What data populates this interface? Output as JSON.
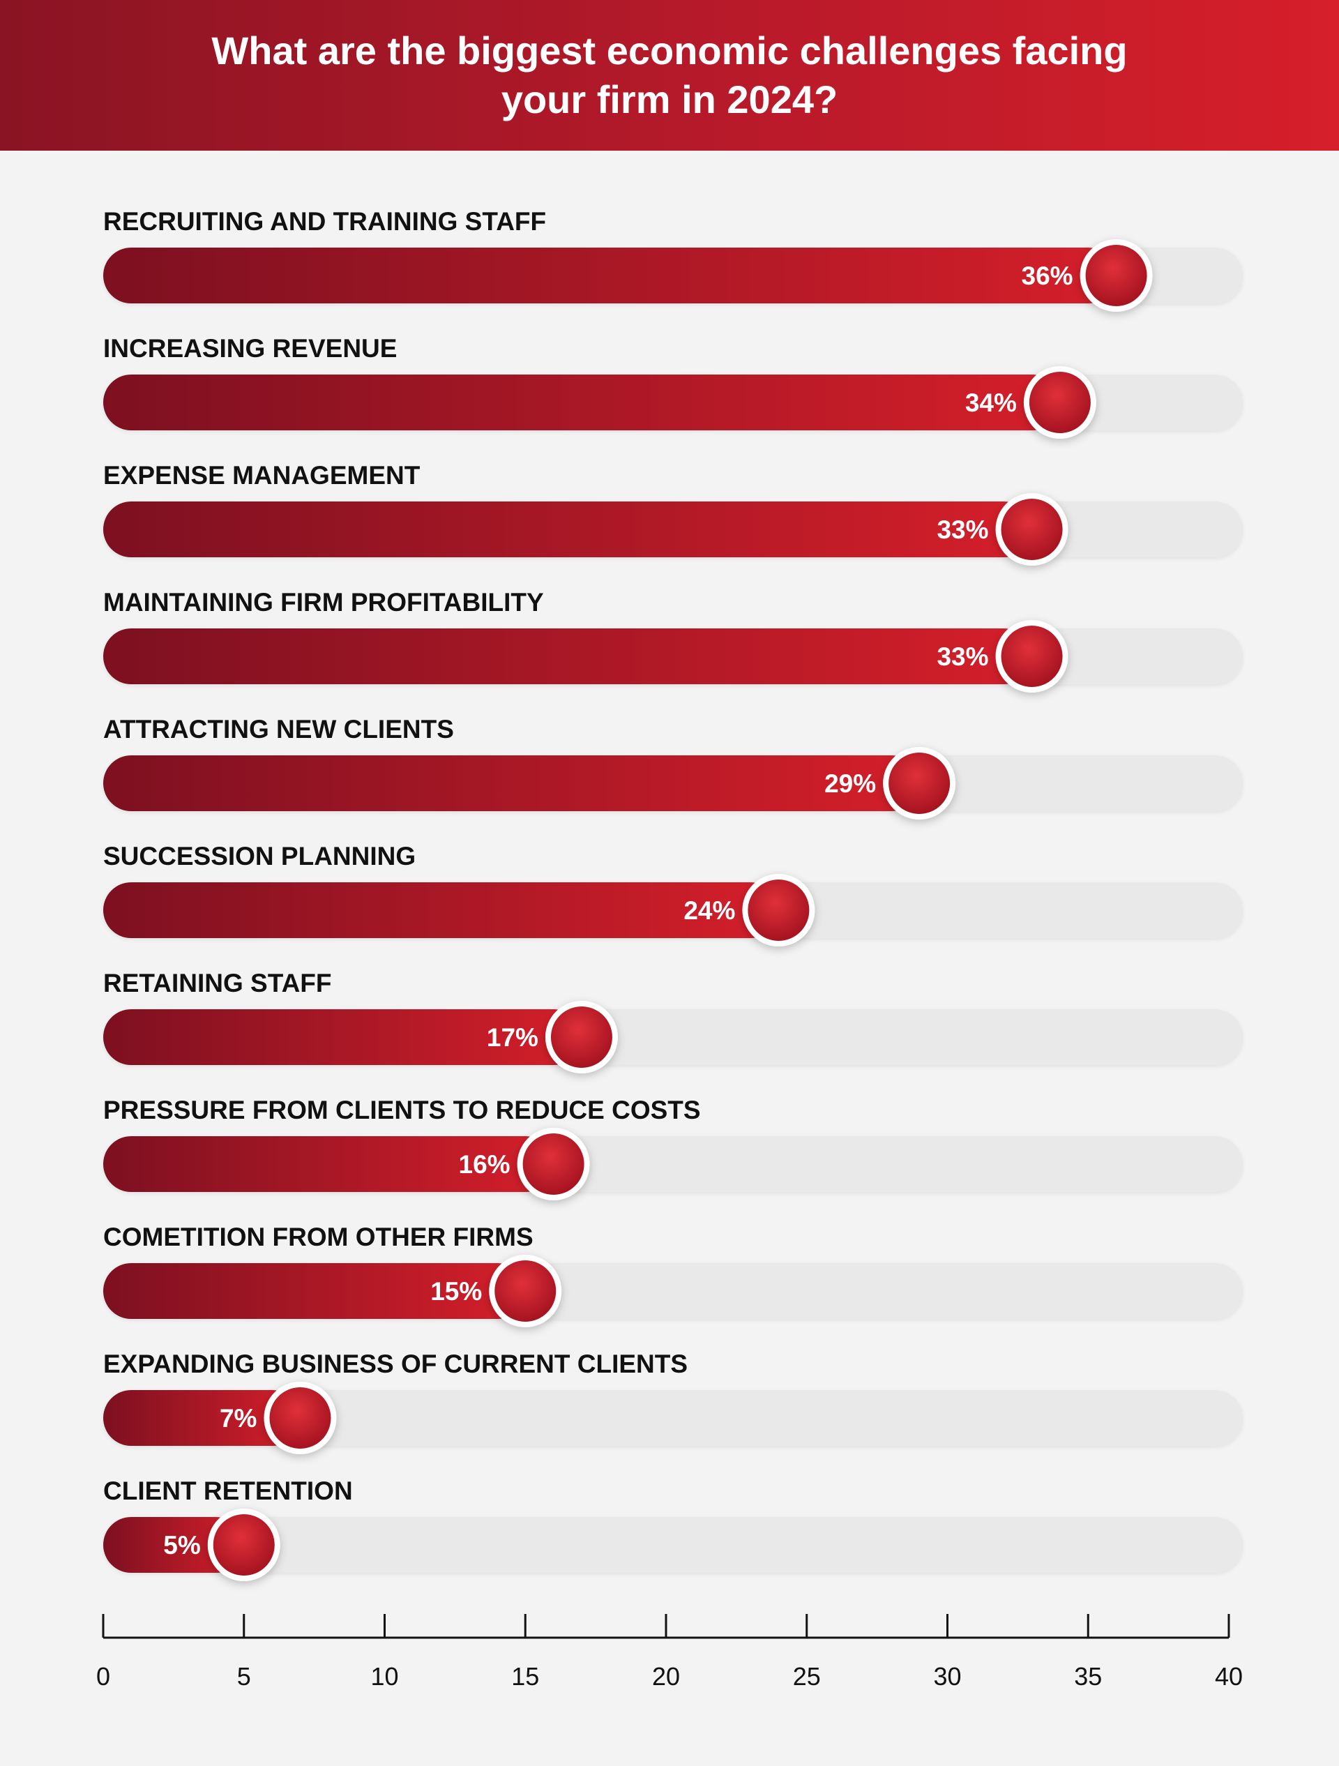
{
  "header": {
    "title": "What are the biggest economic challenges facing your firm in 2024?"
  },
  "colors": {
    "bar_dark": "#7d1020",
    "bar_light": "#d41f2a",
    "track": "#e9e9e9",
    "knob": "#c71a26",
    "background": "#f3f3f3"
  },
  "chart_data": {
    "type": "bar",
    "orientation": "horizontal",
    "title": "What are the biggest economic challenges facing your firm in 2024?",
    "xlabel": "",
    "ylabel": "",
    "xlim": [
      0,
      40
    ],
    "x_ticks": [
      0,
      5,
      10,
      15,
      20,
      25,
      30,
      35,
      40
    ],
    "grid": false,
    "categories": [
      "RECRUITING AND TRAINING STAFF",
      "INCREASING REVENUE",
      "EXPENSE MANAGEMENT",
      "MAINTAINING FIRM PROFITABILITY",
      "ATTRACTING NEW CLIENTS",
      "SUCCESSION PLANNING",
      "RETAINING STAFF",
      "PRESSURE FROM CLIENTS TO REDUCE COSTS",
      "COMETITION FROM OTHER FIRMS",
      "EXPANDING BUSINESS OF CURRENT CLIENTS",
      "CLIENT RETENTION"
    ],
    "values": [
      36,
      34,
      33,
      33,
      29,
      24,
      17,
      16,
      15,
      7,
      5
    ],
    "value_labels": [
      "36%",
      "34%",
      "33%",
      "33%",
      "29%",
      "24%",
      "17%",
      "16%",
      "15%",
      "7%",
      "5%"
    ]
  }
}
